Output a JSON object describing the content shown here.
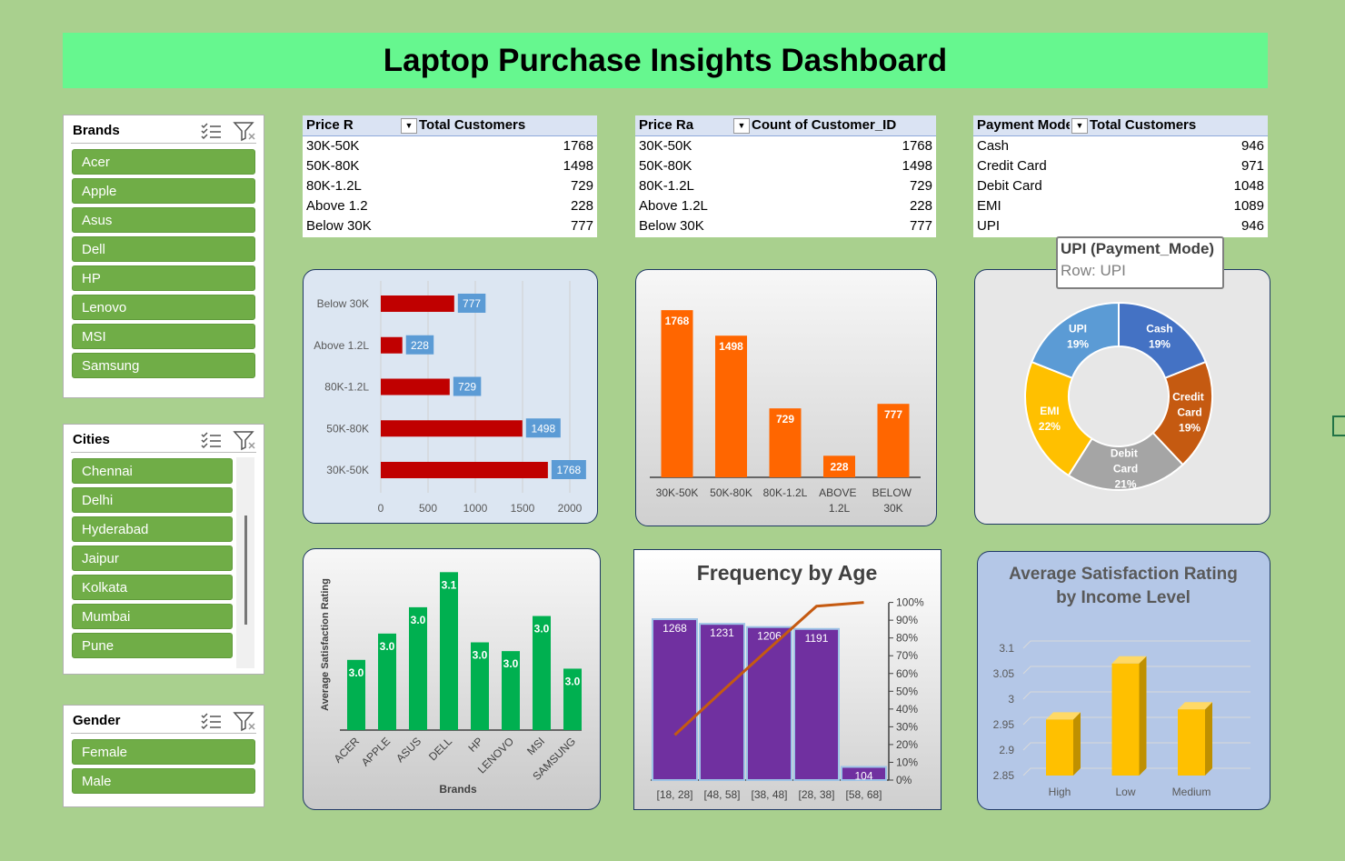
{
  "title": "Laptop Purchase Insights Dashboard",
  "slicers": [
    {
      "title": "Brands",
      "items": [
        "Acer",
        "Apple",
        "Asus",
        "Dell",
        "HP",
        "Lenovo",
        "MSI",
        "Samsung"
      ]
    },
    {
      "title": "Cities",
      "items": [
        "Chennai",
        "Delhi",
        "Hyderabad",
        "Jaipur",
        "Kolkata",
        "Mumbai",
        "Pune"
      ]
    },
    {
      "title": "Gender",
      "items": [
        "Female",
        "Male"
      ]
    }
  ],
  "tables": [
    {
      "headers": [
        "Price R",
        "Total Customers"
      ],
      "rows": [
        [
          "30K-50K",
          1768
        ],
        [
          "50K-80K",
          1498
        ],
        [
          "80K-1.2L",
          729
        ],
        [
          "Above 1.2",
          228
        ],
        [
          "Below 30K",
          777
        ]
      ]
    },
    {
      "headers": [
        "Price Ra",
        "Count of Customer_ID"
      ],
      "rows": [
        [
          "30K-50K",
          1768
        ],
        [
          "50K-80K",
          1498
        ],
        [
          "80K-1.2L",
          729
        ],
        [
          "Above 1.2L",
          228
        ],
        [
          "Below 30K",
          777
        ]
      ]
    },
    {
      "headers": [
        "Payment Mode",
        "Total Customers"
      ],
      "rows": [
        [
          "Cash",
          946
        ],
        [
          "Credit Card",
          971
        ],
        [
          "Debit Card",
          1048
        ],
        [
          "EMI",
          1089
        ],
        [
          "UPI",
          946
        ]
      ]
    }
  ],
  "tooltip": {
    "title": "UPI (Payment_Mode)",
    "text": "Row: UPI"
  },
  "chart_data": [
    {
      "type": "hbar",
      "categories": [
        "30K-50K",
        "50K-80K",
        "80K-1.2L",
        "Above 1.2L",
        "Below 30K"
      ],
      "values": [
        1768,
        1498,
        729,
        228,
        777
      ],
      "color": "#c00000",
      "label_color": "#5b9bd5",
      "xlim": [
        0,
        2000
      ],
      "xticks": [
        0,
        500,
        1000,
        1500,
        2000
      ],
      "grid": true
    },
    {
      "type": "bar",
      "categories": [
        "30K-50K",
        "50K-80K",
        "80K-1.2L",
        "ABOVE 1.2L",
        "BELOW 30K"
      ],
      "values": [
        1768,
        1498,
        729,
        228,
        777
      ],
      "color": "#ff6600",
      "ylim": [
        0,
        2000
      ]
    },
    {
      "type": "donut",
      "categories": [
        "Cash",
        "Credit Card",
        "Debit Card",
        "EMI",
        "UPI"
      ],
      "values": [
        19,
        19,
        21,
        22,
        19
      ],
      "value_labels": [
        "19%",
        "19%",
        "21%",
        "22%",
        "19%"
      ],
      "colors": [
        "#4472c4",
        "#c55a11",
        "#a5a5a5",
        "#ffc000",
        "#5b9bd5"
      ]
    },
    {
      "type": "bar",
      "x_label": "Brands",
      "y_label": "Average Satisfaction Rating",
      "categories": [
        "ACER",
        "APPLE",
        "ASUS",
        "DELL",
        "HP",
        "LENOVO",
        "MSI",
        "SAMSUNG"
      ],
      "values": [
        2.98,
        3.01,
        3.04,
        3.08,
        3.0,
        2.99,
        3.03,
        2.97
      ],
      "value_labels": [
        "3.0",
        "3.0",
        "3.0",
        "3.1",
        "3.0",
        "3.0",
        "3.0",
        "3.0"
      ],
      "color": "#00b050",
      "ylim": [
        2.9,
        3.1
      ]
    },
    {
      "type": "pareto",
      "title": "Frequency by Age",
      "categories": [
        "[18, 28]",
        "[48, 58]",
        "[38, 48]",
        "[28, 38]",
        "[58, 68]"
      ],
      "values": [
        1268,
        1231,
        1206,
        1191,
        104
      ],
      "cumulative": [
        25.4,
        50,
        74.1,
        97.9,
        100
      ],
      "color": "#7030a0",
      "line_color": "#c55a11",
      "ylim": [
        0,
        1400
      ],
      "y2lim": [
        0,
        100
      ],
      "y2ticks": [
        {
          "value": 0,
          "label": "0%"
        },
        {
          "value": 10,
          "label": "10%"
        },
        {
          "value": 20,
          "label": "20%"
        },
        {
          "value": 30,
          "label": "30%"
        },
        {
          "value": 40,
          "label": "40%"
        },
        {
          "value": 50,
          "label": "50%"
        },
        {
          "value": 60,
          "label": "60%"
        },
        {
          "value": 70,
          "label": "70%"
        },
        {
          "value": 80,
          "label": "80%"
        },
        {
          "value": 90,
          "label": "90%"
        },
        {
          "value": 100,
          "label": "100%"
        }
      ]
    },
    {
      "type": "bar3d",
      "title": "Average Satisfaction Rating by Income Level",
      "categories": [
        "High",
        "Low",
        "Medium"
      ],
      "values": [
        2.96,
        3.07,
        2.98
      ],
      "color": "#ffc000",
      "ylim": [
        2.85,
        3.1
      ],
      "yticks": [
        2.85,
        2.9,
        2.95,
        3,
        3.05,
        3.1
      ],
      "grid": true
    }
  ]
}
